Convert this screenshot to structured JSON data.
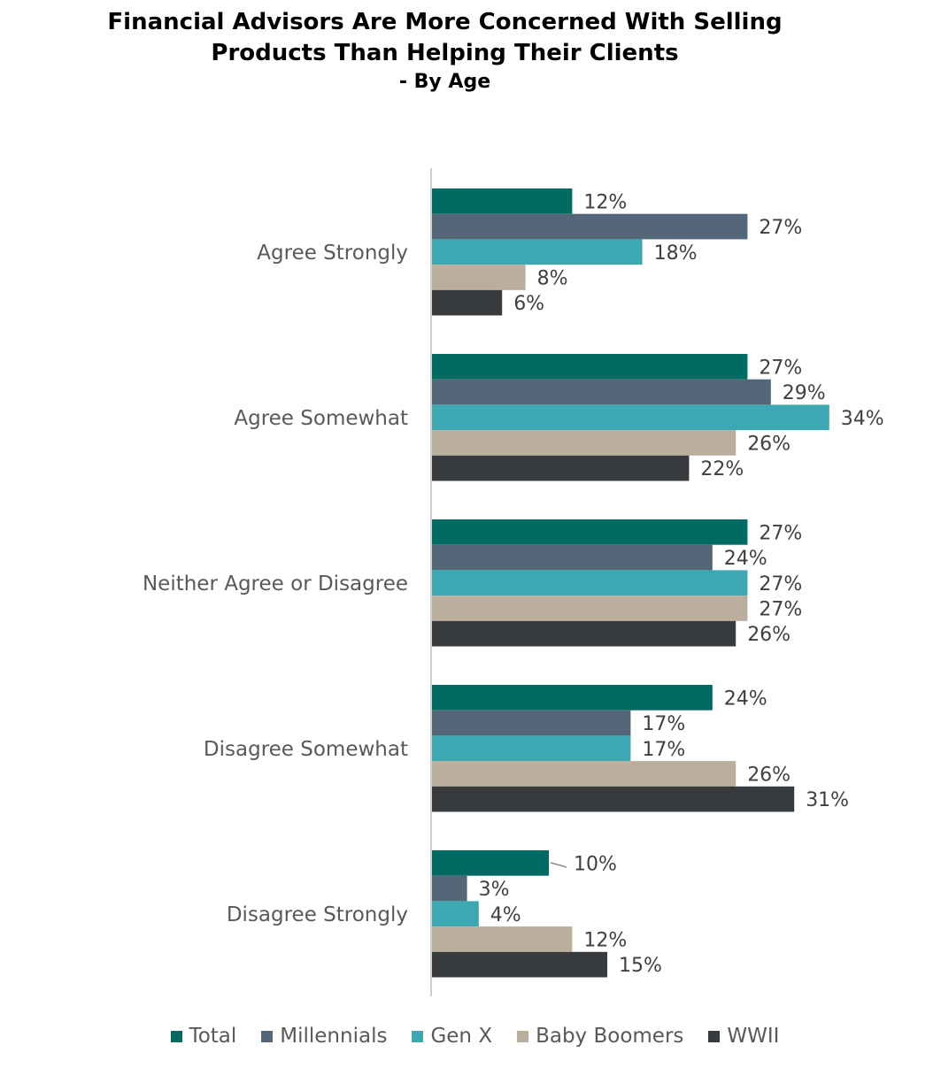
{
  "chart_data": {
    "type": "bar",
    "orientation": "horizontal",
    "title": "Financial Advisors Are More Concerned With Selling Products Than Helping Their Clients",
    "title_lines": [
      "Financial Advisors Are More Concerned With Selling",
      "Products Than Helping Their Clients"
    ],
    "subtitle": "- By Age",
    "categories": [
      "Agree Strongly",
      "Agree Somewhat",
      "Neither Agree or Disagree",
      "Disagree Somewhat",
      "Disagree Strongly"
    ],
    "value_format": "percent",
    "xlim": [
      0,
      40
    ],
    "grid": false,
    "legend_position": "bottom",
    "series": [
      {
        "name": "Total",
        "color": "#006B63",
        "values": [
          12,
          27,
          27,
          24,
          10
        ]
      },
      {
        "name": "Millennials",
        "color": "#546778",
        "values": [
          27,
          29,
          24,
          17,
          3
        ]
      },
      {
        "name": "Gen X",
        "color": "#3DA8B1",
        "values": [
          18,
          34,
          27,
          17,
          4
        ]
      },
      {
        "name": "Baby Boomers",
        "color": "#BAAE9D",
        "values": [
          8,
          26,
          27,
          26,
          12
        ]
      },
      {
        "name": "WWII",
        "color": "#373B3D",
        "values": [
          6,
          22,
          26,
          31,
          15
        ]
      }
    ]
  }
}
